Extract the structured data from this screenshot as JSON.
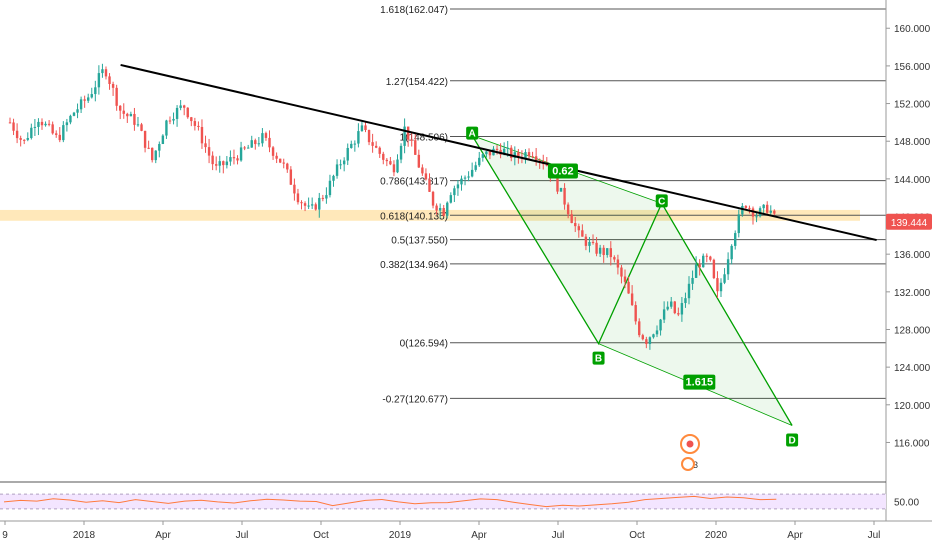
{
  "chart_data": {
    "type": "candlestick",
    "x_tick_labels": [
      "9",
      "2018",
      "Apr",
      "Jul",
      "Oct",
      "2019",
      "Apr",
      "Jul",
      "Oct",
      "2020",
      "Apr",
      "Jul"
    ],
    "y_tick_labels": [
      "160.000",
      "156.000",
      "152.000",
      "148.000",
      "144.000",
      "140.000",
      "136.000",
      "132.000",
      "128.000",
      "124.000",
      "120.000",
      "116.000"
    ],
    "ylim": [
      111.8,
      163.0
    ],
    "current_price": "139.444",
    "price_series": [
      {
        "x": 0.0,
        "y": 150.0
      },
      {
        "x": 0.17,
        "y": 147.8
      },
      {
        "x": 0.35,
        "y": 150.6
      },
      {
        "x": 0.6,
        "y": 148.2
      },
      {
        "x": 0.8,
        "y": 151.0
      },
      {
        "x": 1.0,
        "y": 152.8
      },
      {
        "x": 1.2,
        "y": 155.8
      },
      {
        "x": 1.4,
        "y": 151.2
      },
      {
        "x": 1.6,
        "y": 150.0
      },
      {
        "x": 1.8,
        "y": 146.0
      },
      {
        "x": 2.0,
        "y": 150.5
      },
      {
        "x": 2.2,
        "y": 151.8
      },
      {
        "x": 2.4,
        "y": 148.8
      },
      {
        "x": 2.6,
        "y": 145.0
      },
      {
        "x": 2.9,
        "y": 146.6
      },
      {
        "x": 3.2,
        "y": 148.4
      },
      {
        "x": 3.45,
        "y": 145.6
      },
      {
        "x": 3.65,
        "y": 142.0
      },
      {
        "x": 3.8,
        "y": 140.5
      },
      {
        "x": 4.0,
        "y": 142.6
      },
      {
        "x": 4.2,
        "y": 146.0
      },
      {
        "x": 4.45,
        "y": 149.3
      },
      {
        "x": 4.65,
        "y": 147.0
      },
      {
        "x": 4.85,
        "y": 145.0
      },
      {
        "x": 5.0,
        "y": 149.5
      },
      {
        "x": 5.15,
        "y": 146.0
      },
      {
        "x": 5.35,
        "y": 141.5
      },
      {
        "x": 5.5,
        "y": 140.5
      },
      {
        "x": 5.55,
        "y": 142.5
      },
      {
        "x": 5.8,
        "y": 144.5
      },
      {
        "x": 6.0,
        "y": 146.5
      },
      {
        "x": 6.2,
        "y": 147.2
      },
      {
        "x": 6.4,
        "y": 146.3
      },
      {
        "x": 6.6,
        "y": 147.0
      },
      {
        "x": 6.8,
        "y": 145.5
      },
      {
        "x": 7.0,
        "y": 142.0
      },
      {
        "x": 7.2,
        "y": 138.0
      },
      {
        "x": 7.4,
        "y": 136.5
      },
      {
        "x": 7.6,
        "y": 136.0
      },
      {
        "x": 7.8,
        "y": 132.5
      },
      {
        "x": 7.95,
        "y": 128.0
      },
      {
        "x": 8.05,
        "y": 126.8
      },
      {
        "x": 8.2,
        "y": 128.5
      },
      {
        "x": 8.35,
        "y": 130.8
      },
      {
        "x": 8.45,
        "y": 129.2
      },
      {
        "x": 8.55,
        "y": 131.5
      },
      {
        "x": 8.7,
        "y": 135.0
      },
      {
        "x": 8.85,
        "y": 135.5
      },
      {
        "x": 8.95,
        "y": 131.5
      },
      {
        "x": 9.05,
        "y": 134.5
      },
      {
        "x": 9.15,
        "y": 138.0
      },
      {
        "x": 9.3,
        "y": 141.5
      },
      {
        "x": 9.45,
        "y": 140.2
      },
      {
        "x": 9.6,
        "y": 141.0
      },
      {
        "x": 9.7,
        "y": 139.4
      }
    ],
    "trendline": {
      "points": [
        {
          "x": 1.4,
          "y": 156.1
        },
        {
          "x": 10.97,
          "y": 137.5
        }
      ]
    },
    "fibonacci_levels": [
      {
        "label": "1.618(162.047)",
        "value": 162.047
      },
      {
        "label": "1.27(154.422)",
        "value": 154.422
      },
      {
        "label": "1(148.506)",
        "value": 148.506
      },
      {
        "label": "0.786(143.817)",
        "value": 143.817
      },
      {
        "label": "0.618(140.135)",
        "value": 140.135
      },
      {
        "label": "0.5(137.550)",
        "value": 137.55
      },
      {
        "label": "0.382(134.964)",
        "value": 134.964
      },
      {
        "label": "0(126.594)",
        "value": 126.594
      },
      {
        "label": "-0.27(120.677)",
        "value": 120.677
      }
    ],
    "zone_band": {
      "low": 139.55,
      "high": 140.7
    },
    "harmonic_pattern": {
      "points": [
        {
          "label": "A",
          "x": 5.85,
          "y": 148.6
        },
        {
          "label": "B",
          "x": 7.45,
          "y": 126.5
        },
        {
          "label": "C",
          "x": 8.25,
          "y": 141.4
        },
        {
          "label": "D",
          "x": 9.9,
          "y": 117.8
        }
      ],
      "ratios": [
        "0.62",
        "1.615"
      ]
    },
    "rsi": {
      "tick_label": "50.00",
      "values": [
        49.0,
        53.0,
        51.0,
        57.5,
        54.0,
        48.0,
        52.0,
        47.0,
        55.0,
        50.0,
        45.0,
        51.0,
        53.5,
        49.0,
        46.0,
        52.0,
        56.0,
        54.0,
        51.0,
        50.0,
        39.0,
        46.0,
        53.0,
        55.5,
        49.0,
        44.0,
        46.5,
        47.0,
        52.0,
        57.0,
        55.0,
        48.0,
        42.0,
        36.0,
        40.0,
        38.0,
        41.0,
        44.0,
        48.0,
        55.0,
        58.0,
        61.0,
        64.0,
        58.0,
        62.0,
        60.0,
        55.0,
        56.0
      ]
    },
    "legend": "none",
    "grid": false
  },
  "colors": {
    "up_candle": "#26a69a",
    "down_candle": "#ef5350",
    "trendline": "#000000",
    "pattern": "#00a000",
    "pattern_fill": "rgba(0,160,0,0.07)",
    "zone": "#ffcc66",
    "fib_line": "#555555",
    "rsi_line": "#ff7a3d",
    "rsi_band": "#f3e5ff",
    "price_tag": "#ef5350",
    "event_icon": "#ff8a3d"
  },
  "event_badge": {
    "count": "3"
  }
}
